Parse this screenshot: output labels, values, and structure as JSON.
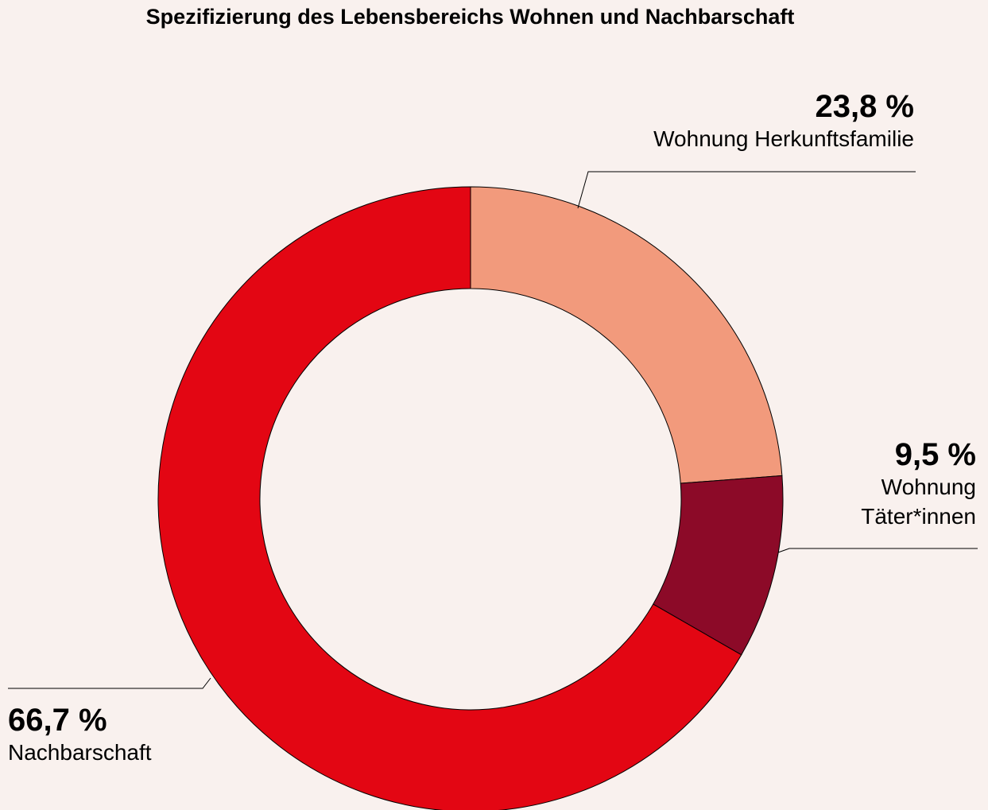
{
  "chart_data": {
    "type": "donut",
    "title": "Spezifizierung des Lebensbereichs Wohnen und Nachbarschaft",
    "categories": [
      "Wohnung Herkunftsfamilie",
      "Wohnung Täter*innen",
      "Nachbarschaft"
    ],
    "values": [
      23.8,
      9.5,
      66.7
    ],
    "value_labels": [
      "23,8 %",
      "9,5 %",
      "66,7 %"
    ],
    "colors": [
      "#f29a7c",
      "#8c0a28",
      "#e30613"
    ]
  }
}
